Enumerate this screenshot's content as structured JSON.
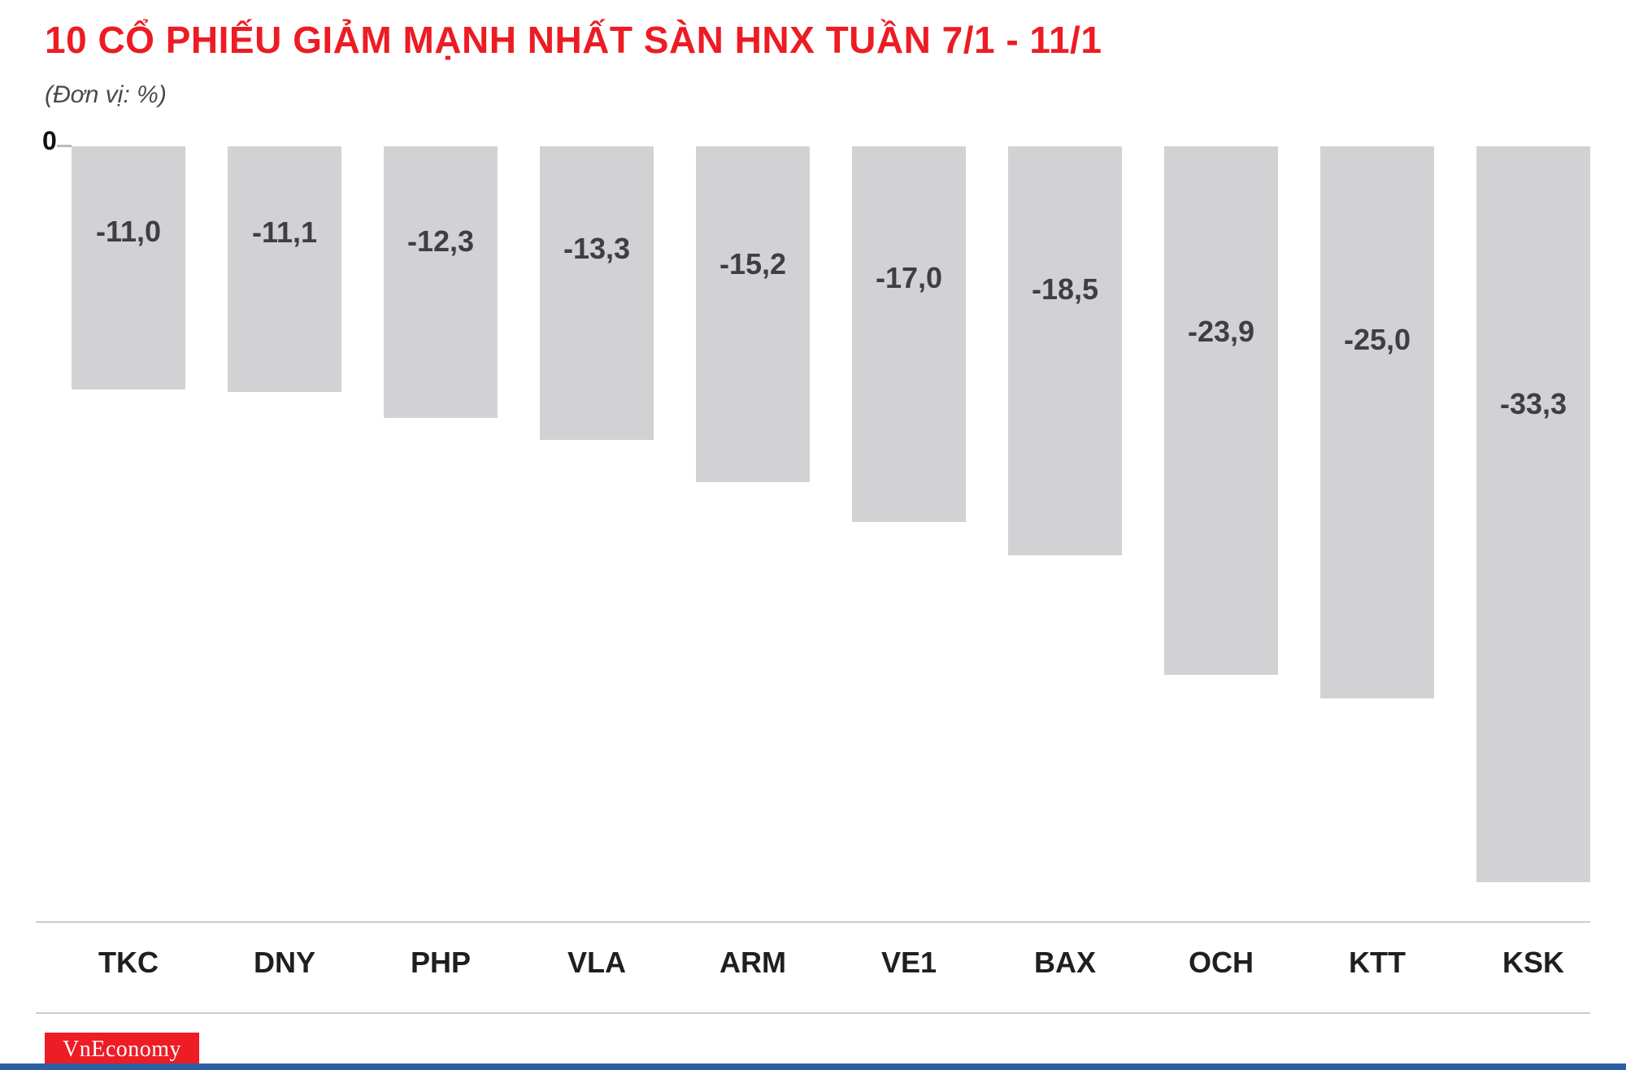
{
  "header": {
    "title": "10 CỔ PHIẾU GIẢM MẠNH NHẤT SÀN HNX TUẦN 7/1 - 11/1",
    "subtitle": "(Đơn vị: %)"
  },
  "chart_data": {
    "type": "bar",
    "orientation": "vertical-negative",
    "title": "10 CỔ PHIẾU GIẢM MẠNH NHẤT SÀN HNX TUẦN 7/1 - 11/1",
    "unit": "%",
    "zero_label": "0",
    "categories": [
      "TKC",
      "DNY",
      "PHP",
      "VLA",
      "ARM",
      "VE1",
      "BAX",
      "OCH",
      "KTT",
      "KSK"
    ],
    "values": [
      -11.0,
      -11.1,
      -12.3,
      -13.3,
      -15.2,
      -17.0,
      -18.5,
      -23.9,
      -25.0,
      -33.3
    ],
    "value_labels": [
      "-11,0",
      "-11,1",
      "-12,3",
      "-13,3",
      "-15,2",
      "-17,0",
      "-18,5",
      "-23,9",
      "-25,0",
      "-33,3"
    ],
    "ylim": [
      -33.3,
      0
    ],
    "grid": false,
    "legend": false,
    "bar_color": "#d2d2d4"
  },
  "footer": {
    "brand": "VnEconomy"
  },
  "colors": {
    "title_red": "#ec1c24",
    "bar_gray": "#d2d2d4",
    "value_text": "#3f3f41",
    "brand_bg": "#ee1c25",
    "footer_blue": "#2e5fa3",
    "separator": "#cccccc"
  }
}
